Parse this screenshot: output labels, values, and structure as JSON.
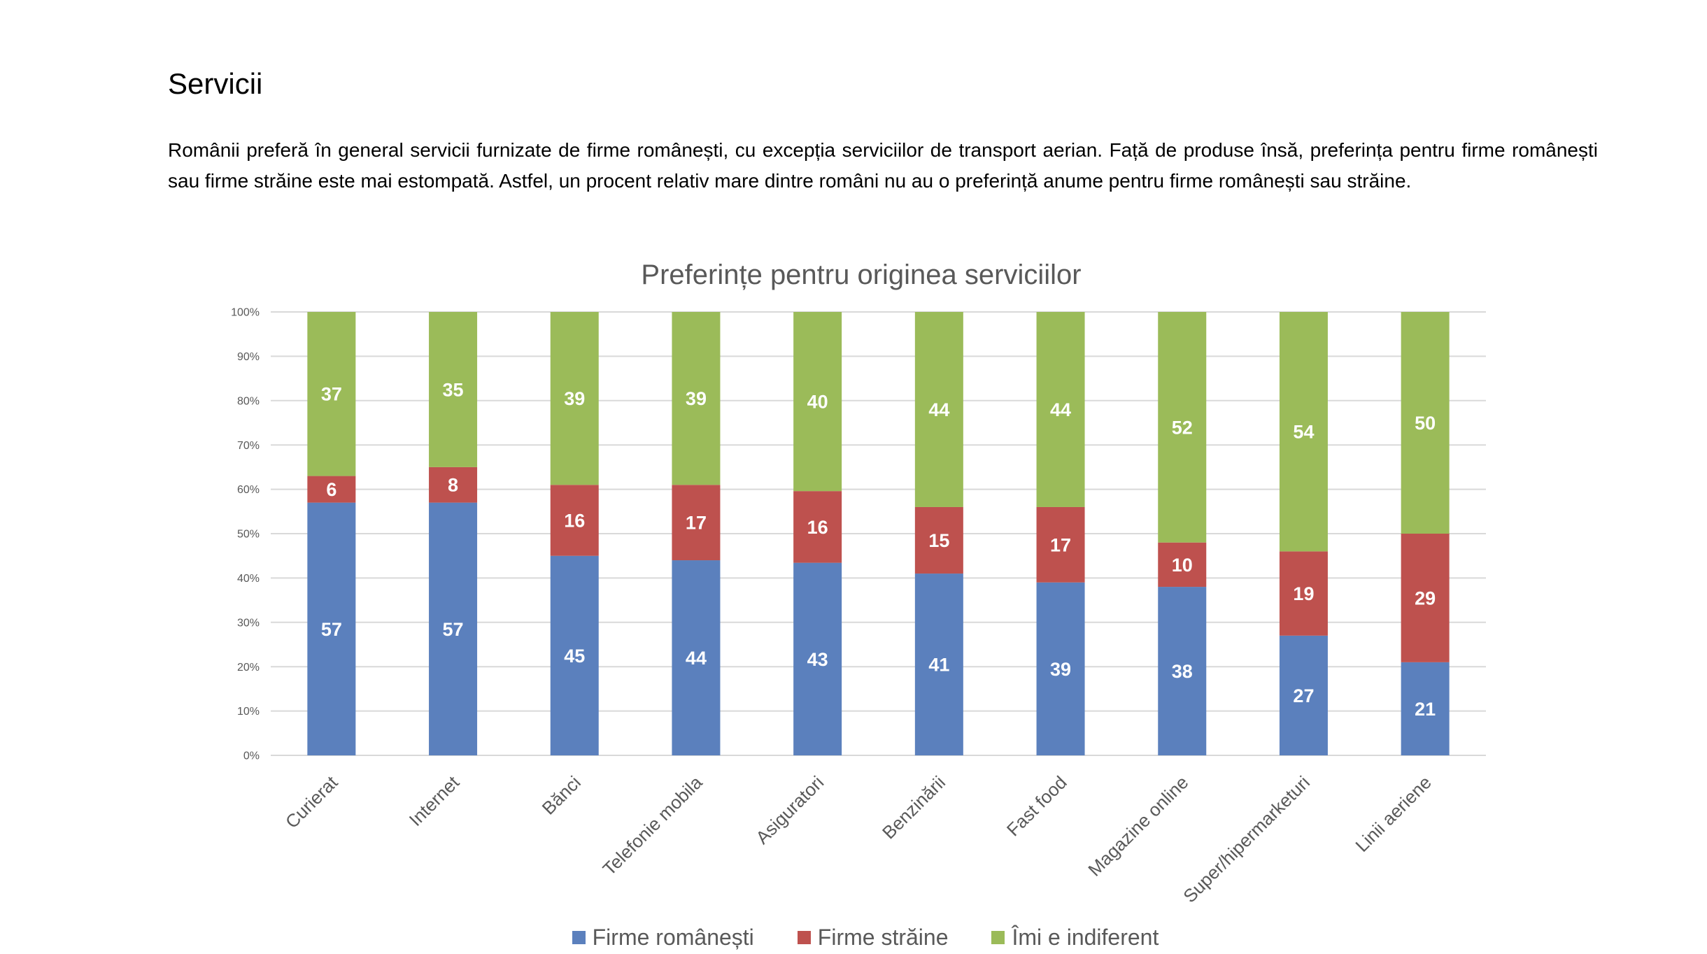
{
  "section": {
    "heading": "Servicii",
    "paragraph": "Românii preferă în general servicii furnizate de firme românești, cu excepția serviciilor de transport aerian. Față de produse însă, preferința pentru firme românești sau firme străine este mai estompată. Astfel, un procent relativ mare dintre români nu au o preferință anume pentru firme românești sau străine."
  },
  "chart_data": {
    "type": "bar",
    "stacked": true,
    "percent_stacked": true,
    "title": "Preferințe pentru originea serviciilor",
    "categories": [
      "Curierat",
      "Internet",
      "Bănci",
      "Telefonie mobila",
      "Asiguratori",
      "Benzinării",
      "Fast food",
      "Magazine online",
      "Super/hipermarketuri",
      "Linii aeriene"
    ],
    "series": [
      {
        "name": "Firme românești",
        "color": "#5B80BD",
        "values": [
          57,
          57,
          45,
          44,
          43,
          41,
          39,
          38,
          27,
          21
        ]
      },
      {
        "name": "Firme străine",
        "color": "#BE514E",
        "values": [
          6,
          8,
          16,
          17,
          16,
          15,
          17,
          10,
          19,
          29
        ]
      },
      {
        "name": "Îmi e indiferent",
        "color": "#9BBB59",
        "values": [
          37,
          35,
          39,
          39,
          40,
          44,
          44,
          52,
          54,
          50
        ]
      }
    ],
    "ylim": [
      0,
      100
    ],
    "y_ticks": [
      0,
      10,
      20,
      30,
      40,
      50,
      60,
      70,
      80,
      90,
      100
    ],
    "y_tick_labels": [
      "0%",
      "10%",
      "20%",
      "30%",
      "40%",
      "50%",
      "60%",
      "70%",
      "80%",
      "90%",
      "100%"
    ],
    "grid": true,
    "legend": "bottom",
    "gridline_color": "#D9D9D9",
    "axis_text_color": "#595959",
    "data_label_color": "#FFFFFF"
  }
}
